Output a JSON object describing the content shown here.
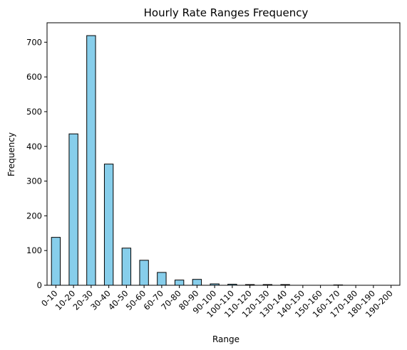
{
  "chart_data": {
    "type": "bar",
    "title": "Hourly Rate Ranges Frequency",
    "xlabel": "Range",
    "ylabel": "Frequency",
    "ylim": [
      0,
      756
    ],
    "yticks": [
      0,
      100,
      200,
      300,
      400,
      500,
      600,
      700
    ],
    "grid": false,
    "bar_color": "#87CEEB",
    "edge_color": "#000000",
    "categories": [
      "0-10",
      "10-20",
      "20-30",
      "30-40",
      "40-50",
      "50-60",
      "60-70",
      "70-80",
      "80-90",
      "90-100",
      "100-110",
      "110-120",
      "120-130",
      "130-140",
      "140-150",
      "150-160",
      "160-170",
      "170-180",
      "180-190",
      "190-200"
    ],
    "values": [
      138,
      436,
      719,
      349,
      107,
      72,
      37,
      15,
      17,
      4,
      3,
      2,
      2,
      2,
      0,
      0,
      1,
      0,
      0,
      0
    ]
  }
}
